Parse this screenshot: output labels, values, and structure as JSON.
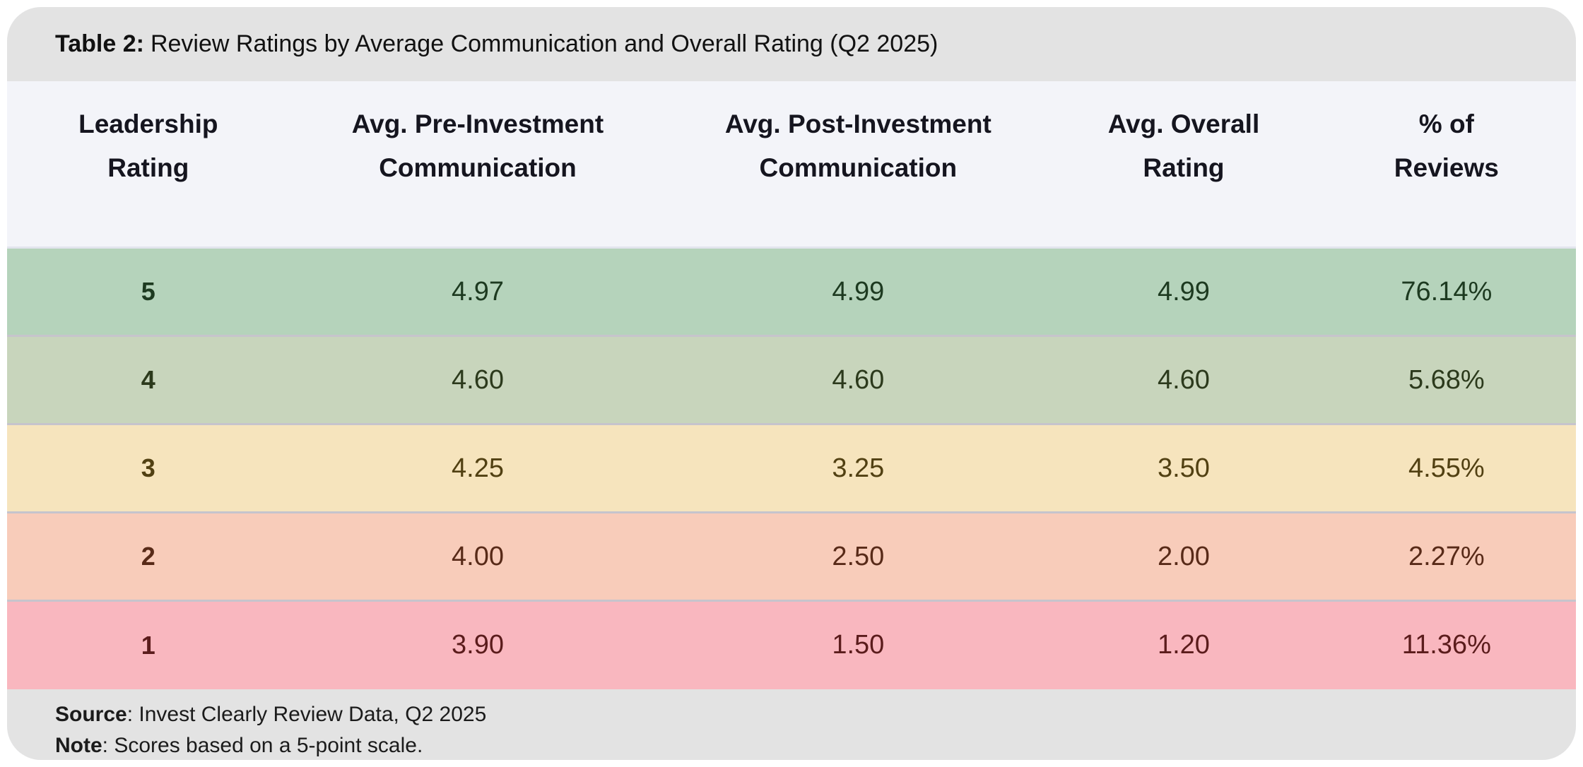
{
  "title": {
    "prefix": "Table 2:",
    "text": "Review Ratings by Average Communication and Overall Rating (Q2 2025)"
  },
  "table": {
    "headers": [
      {
        "line1": "Leadership",
        "line2": "Rating"
      },
      {
        "line1": "Avg. Pre-Investment",
        "line2": "Communication"
      },
      {
        "line1": "Avg. Post-Investment",
        "line2": "Communication"
      },
      {
        "line1": "Avg. Overall",
        "line2": "Rating"
      },
      {
        "line1": "% of",
        "line2": "Reviews"
      }
    ],
    "rows": [
      {
        "rating": "5",
        "pre": "4.97",
        "post": "4.99",
        "overall": "4.99",
        "pct": "76.14%",
        "bg": "#b5d3bb",
        "fg": "#1d3a20"
      },
      {
        "rating": "4",
        "pre": "4.60",
        "post": "4.60",
        "overall": "4.60",
        "pct": "5.68%",
        "bg": "#c8d5bc",
        "fg": "#2c3a1c"
      },
      {
        "rating": "3",
        "pre": "4.25",
        "post": "3.25",
        "overall": "3.50",
        "pct": "4.55%",
        "bg": "#f6e4bd",
        "fg": "#514012"
      },
      {
        "rating": "2",
        "pre": "4.00",
        "post": "2.50",
        "overall": "2.00",
        "pct": "2.27%",
        "bg": "#f8ccba",
        "fg": "#582a18"
      },
      {
        "rating": "1",
        "pre": "3.90",
        "post": "1.50",
        "overall": "1.20",
        "pct": "11.36%",
        "bg": "#f9b7bf",
        "fg": "#5b1c1c"
      }
    ]
  },
  "footer": {
    "source_label": "Source",
    "source_text": ": Invest Clearly Review Data, Q2 2025",
    "note_label": "Note",
    "note_text": ": Scores based on a 5-point scale."
  },
  "colors": {
    "card_titlebar_bg": "#e3e3e3",
    "table_header_bg": "#f3f4f9",
    "row_separator": "#c6c4cc",
    "row5_bg": "#b5d3bb",
    "row4_bg": "#c8d5bc",
    "row3_bg": "#f6e4bd",
    "row2_bg": "#f8ccba",
    "row1_bg": "#f9b7bf"
  },
  "chart_data": {
    "type": "table",
    "title": "Table 2: Review Ratings by Average Communication and Overall Rating (Q2 2025)",
    "columns": [
      "Leadership Rating",
      "Avg. Pre-Investment Communication",
      "Avg. Post-Investment Communication",
      "Avg. Overall Rating",
      "% of Reviews"
    ],
    "rows": [
      [
        "5",
        "4.97",
        "4.99",
        "4.99",
        "76.14%"
      ],
      [
        "4",
        "4.60",
        "4.60",
        "4.60",
        "5.68%"
      ],
      [
        "3",
        "4.25",
        "3.25",
        "3.50",
        "4.55%"
      ],
      [
        "2",
        "4.00",
        "2.50",
        "2.00",
        "2.27%"
      ],
      [
        "1",
        "3.90",
        "1.50",
        "1.20",
        "11.36%"
      ]
    ],
    "source": "Invest Clearly Review Data, Q2 2025",
    "note": "Scores based on a 5-point scale.",
    "scale": "5-point scale"
  }
}
